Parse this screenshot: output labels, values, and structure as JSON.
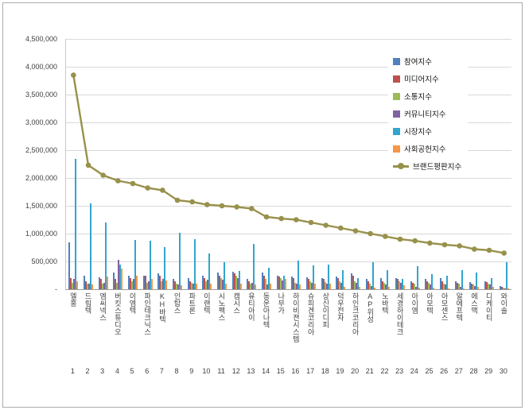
{
  "chart_data": {
    "type": "bar",
    "subtype": "grouped-bars-with-line-overlay",
    "title": "",
    "xlabel": "",
    "ylabel": "",
    "ylim": [
      0,
      4500000
    ],
    "ytick_step": 500000,
    "ytick_labels": [
      "-",
      "500,000",
      "1,000,000",
      "1,500,000",
      "2,000,000",
      "2,500,000",
      "3,000,000",
      "3,500,000",
      "4,000,000",
      "4,500,000"
    ],
    "grid": true,
    "legend_position": "upper-right-inside",
    "categories": [
      "엘홍",
      "드림텍",
      "엠씨넥스",
      "버킷스튜디오",
      "이엠텍",
      "파인테크닉스",
      "KH바텍",
      "인탑스",
      "파트론",
      "이랜텍",
      "시노펙스",
      "캠시스",
      "유티아이",
      "동운아나텍",
      "나무가",
      "하이비젼시스템",
      "슈피겐코리아",
      "상신이디피",
      "덕우전자",
      "하인크코리아",
      "AP위성",
      "노바텍",
      "세경하이테크",
      "아이엠",
      "아모텍",
      "아모센스",
      "알에프텍",
      "에스맥",
      "디케이티",
      "와이솔"
    ],
    "ranks": [
      "1",
      "2",
      "3",
      "4",
      "5",
      "6",
      "7",
      "8",
      "9",
      "10",
      "11",
      "12",
      "13",
      "14",
      "15",
      "16",
      "17",
      "18",
      "19",
      "20",
      "21",
      "22",
      "23",
      "24",
      "25",
      "26",
      "27",
      "28",
      "29",
      "30"
    ],
    "series": [
      {
        "name": "참여지수",
        "type": "bar",
        "color": "#4F81BD",
        "values": [
          850000,
          250000,
          220000,
          300000,
          250000,
          250000,
          280000,
          180000,
          200000,
          250000,
          300000,
          320000,
          180000,
          300000,
          250000,
          230000,
          220000,
          200000,
          230000,
          280000,
          180000,
          200000,
          200000,
          150000,
          180000,
          200000,
          150000,
          130000,
          150000,
          60000
        ]
      },
      {
        "name": "미디어지수",
        "type": "bar",
        "color": "#C0504D",
        "values": [
          200000,
          150000,
          180000,
          180000,
          200000,
          250000,
          250000,
          150000,
          150000,
          200000,
          250000,
          280000,
          150000,
          250000,
          230000,
          200000,
          180000,
          180000,
          200000,
          250000,
          150000,
          150000,
          180000,
          120000,
          150000,
          150000,
          120000,
          100000,
          130000,
          50000
        ]
      },
      {
        "name": "소통지수",
        "type": "bar",
        "color": "#9BBB59",
        "values": [
          120000,
          100000,
          100000,
          120000,
          150000,
          120000,
          150000,
          100000,
          120000,
          150000,
          200000,
          250000,
          100000,
          180000,
          200000,
          120000,
          150000,
          130000,
          150000,
          150000,
          100000,
          120000,
          150000,
          100000,
          120000,
          100000,
          100000,
          80000,
          100000,
          30000
        ]
      },
      {
        "name": "커뮤니티지수",
        "type": "bar",
        "color": "#8064A2",
        "values": [
          180000,
          100000,
          120000,
          530000,
          180000,
          150000,
          180000,
          80000,
          100000,
          170000,
          170000,
          200000,
          120000,
          90000,
          160000,
          100000,
          120000,
          100000,
          120000,
          120000,
          60000,
          80000,
          120000,
          50000,
          80000,
          80000,
          50000,
          60000,
          80000,
          20000
        ]
      },
      {
        "name": "시장지수",
        "type": "bar",
        "color": "#31A5CE",
        "values": [
          2350000,
          1550000,
          1200000,
          450000,
          880000,
          870000,
          760000,
          1020000,
          900000,
          650000,
          480000,
          330000,
          820000,
          380000,
          250000,
          520000,
          430000,
          440000,
          350000,
          200000,
          480000,
          350000,
          180000,
          420000,
          270000,
          250000,
          340000,
          300000,
          200000,
          480000
        ]
      },
      {
        "name": "사회공헌지수",
        "type": "bar",
        "color": "#F79646",
        "values": [
          150000,
          80000,
          230000,
          370000,
          240000,
          180000,
          160000,
          70000,
          100000,
          100000,
          100000,
          100000,
          80000,
          100000,
          180000,
          80000,
          100000,
          100000,
          50000,
          50000,
          30000,
          50000,
          70000,
          30000,
          30000,
          20000,
          20000,
          50000,
          40000,
          10000
        ]
      },
      {
        "name": "브랜드평판지수",
        "type": "line",
        "color": "#98914B",
        "values": [
          3850000,
          2230000,
          2050000,
          1950000,
          1900000,
          1820000,
          1780000,
          1600000,
          1570000,
          1520000,
          1500000,
          1480000,
          1450000,
          1300000,
          1270000,
          1250000,
          1200000,
          1150000,
          1100000,
          1050000,
          1000000,
          950000,
          900000,
          870000,
          830000,
          800000,
          780000,
          720000,
          700000,
          650000
        ]
      }
    ]
  }
}
